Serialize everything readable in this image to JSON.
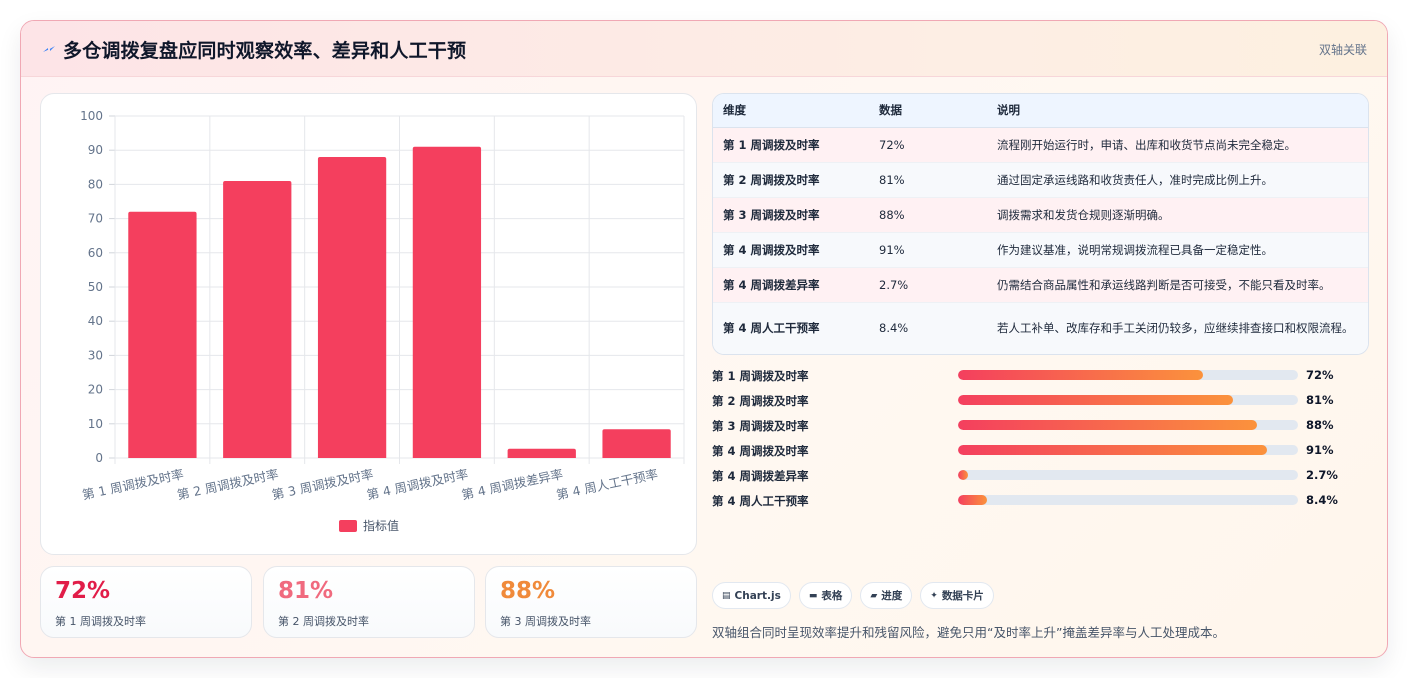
{
  "header": {
    "title": "多仓调拨复盘应同时观察效率、差异和人工干预",
    "badge": "双轴关联",
    "title_icon": "bolt-icon"
  },
  "chart_data": {
    "type": "bar",
    "categories": [
      "第 1 周调拨及时率",
      "第 2 周调拨及时率",
      "第 3 周调拨及时率",
      "第 4 周调拨及时率",
      "第 4 周调拨差异率",
      "第 4 周人工干预率"
    ],
    "series": [
      {
        "name": "指标值",
        "values": [
          72,
          81,
          88,
          91,
          2.7,
          8.4
        ]
      }
    ],
    "ylim": [
      0,
      100
    ],
    "yticks": [
      0,
      10,
      20,
      30,
      40,
      50,
      60,
      70,
      80,
      90,
      100
    ],
    "grid": true,
    "legend_position": "bottom",
    "bar_color": "#f43f5e"
  },
  "kpis": [
    {
      "value": "72%",
      "label": "第 1 周调拨及时率",
      "color": "#e11d48"
    },
    {
      "value": "81%",
      "label": "第 2 周调拨及时率",
      "color": "#f06a7e"
    },
    {
      "value": "88%",
      "label": "第 3 周调拨及时率",
      "color": "#f08a3a"
    }
  ],
  "table": {
    "headers": [
      "维度",
      "数据",
      "说明"
    ],
    "rows": [
      {
        "dim": "第 1 周调拨及时率",
        "value": "72%",
        "note": "流程刚开始运行时，申请、出库和收货节点尚未完全稳定。"
      },
      {
        "dim": "第 2 周调拨及时率",
        "value": "81%",
        "note": "通过固定承运线路和收货责任人，准时完成比例上升。"
      },
      {
        "dim": "第 3 周调拨及时率",
        "value": "88%",
        "note": "调拨需求和发货仓规则逐渐明确。"
      },
      {
        "dim": "第 4 周调拨及时率",
        "value": "91%",
        "note": "作为建议基准，说明常规调拨流程已具备一定稳定性。"
      },
      {
        "dim": "第 4 周调拨差异率",
        "value": "2.7%",
        "note": "仍需结合商品属性和承运线路判断是否可接受，不能只看及时率。"
      },
      {
        "dim": "第 4 周人工干预率",
        "value": "8.4%",
        "note": "若人工补单、改库存和手工关闭仍较多，应继续排查接口和权限流程。"
      }
    ]
  },
  "progress": [
    {
      "label": "第 1 周调拨及时率",
      "value": "72%",
      "level": 0.72
    },
    {
      "label": "第 2 周调拨及时率",
      "value": "81%",
      "level": 0.81
    },
    {
      "label": "第 3 周调拨及时率",
      "value": "88%",
      "level": 0.88
    },
    {
      "label": "第 4 周调拨及时率",
      "value": "91%",
      "level": 0.91
    },
    {
      "label": "第 4 周调拨差异率",
      "value": "2.7%",
      "level": 0.027
    },
    {
      "label": "第 4 周人工干预率",
      "value": "8.4%",
      "level": 0.084
    }
  ],
  "tags": [
    {
      "label": "Chart.js",
      "icon": "chart-icon"
    },
    {
      "label": "表格",
      "icon": "table-icon"
    },
    {
      "label": "进度",
      "icon": "progress-icon"
    },
    {
      "label": "数据卡片",
      "icon": "sparkle-icon"
    }
  ],
  "footnote": "双轴组合同时呈现效率提升和残留风险，避免只用“及时率上升”掩盖差异率与人工处理成本。"
}
